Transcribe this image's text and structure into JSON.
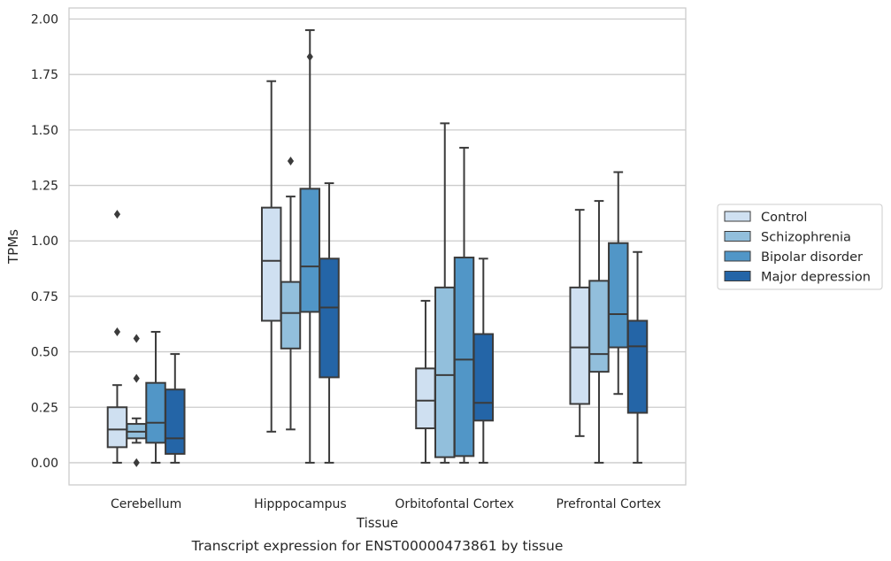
{
  "chart_data": {
    "type": "box",
    "title": "",
    "caption": "Transcript expression for ENST00000473861 by tissue",
    "xlabel": "Tissue",
    "ylabel": "TPMs",
    "ylim": [
      -0.1,
      2.05
    ],
    "yticks": [
      0.0,
      0.25,
      0.5,
      0.75,
      1.0,
      1.25,
      1.5,
      1.75,
      2.0
    ],
    "ytick_labels": [
      "0.00",
      "0.25",
      "0.50",
      "0.75",
      "1.00",
      "1.25",
      "1.50",
      "1.75",
      "2.00"
    ],
    "grid": "horizontal",
    "legend_position": "right",
    "categories": [
      "Cerebellum",
      "Hipppocampus",
      "Orbitofontal Cortex",
      "Prefrontal Cortex"
    ],
    "series": [
      {
        "name": "Control",
        "color": "#cfe0f1",
        "boxes": [
          {
            "whislo": 0.0,
            "q1": 0.07,
            "med": 0.15,
            "q3": 0.25,
            "whishi": 0.35,
            "fliers": [
              0.59,
              1.12
            ]
          },
          {
            "whislo": 0.14,
            "q1": 0.64,
            "med": 0.91,
            "q3": 1.15,
            "whishi": 1.72,
            "fliers": []
          },
          {
            "whislo": 0.0,
            "q1": 0.155,
            "med": 0.28,
            "q3": 0.425,
            "whishi": 0.73,
            "fliers": []
          },
          {
            "whislo": 0.12,
            "q1": 0.265,
            "med": 0.52,
            "q3": 0.79,
            "whishi": 1.14,
            "fliers": []
          }
        ]
      },
      {
        "name": "Schizophrenia",
        "color": "#92bfdc",
        "boxes": [
          {
            "whislo": 0.09,
            "q1": 0.11,
            "med": 0.14,
            "q3": 0.175,
            "whishi": 0.2,
            "fliers": [
              0.0,
              0.38,
              0.56
            ]
          },
          {
            "whislo": 0.15,
            "q1": 0.515,
            "med": 0.675,
            "q3": 0.815,
            "whishi": 1.2,
            "fliers": [
              1.36
            ]
          },
          {
            "whislo": 0.0,
            "q1": 0.025,
            "med": 0.395,
            "q3": 0.79,
            "whishi": 1.53,
            "fliers": []
          },
          {
            "whislo": 0.0,
            "q1": 0.41,
            "med": 0.49,
            "q3": 0.82,
            "whishi": 1.18,
            "fliers": []
          }
        ]
      },
      {
        "name": "Bipolar disorder",
        "color": "#5196c7",
        "boxes": [
          {
            "whislo": 0.0,
            "q1": 0.09,
            "med": 0.18,
            "q3": 0.36,
            "whishi": 0.59,
            "fliers": []
          },
          {
            "whislo": 0.0,
            "q1": 0.68,
            "med": 0.885,
            "q3": 1.235,
            "whishi": 1.95,
            "fliers": [
              1.83
            ]
          },
          {
            "whislo": 0.0,
            "q1": 0.03,
            "med": 0.465,
            "q3": 0.925,
            "whishi": 1.42,
            "fliers": []
          },
          {
            "whislo": 0.31,
            "q1": 0.52,
            "med": 0.67,
            "q3": 0.99,
            "whishi": 1.31,
            "fliers": []
          }
        ]
      },
      {
        "name": "Major depression",
        "color": "#2465a7",
        "boxes": [
          {
            "whislo": 0.0,
            "q1": 0.04,
            "med": 0.11,
            "q3": 0.33,
            "whishi": 0.49,
            "fliers": []
          },
          {
            "whislo": 0.0,
            "q1": 0.385,
            "med": 0.7,
            "q3": 0.92,
            "whishi": 1.26,
            "fliers": []
          },
          {
            "whislo": 0.0,
            "q1": 0.19,
            "med": 0.27,
            "q3": 0.58,
            "whishi": 0.92,
            "fliers": []
          },
          {
            "whislo": 0.0,
            "q1": 0.225,
            "med": 0.525,
            "q3": 0.64,
            "whishi": 0.95,
            "fliers": []
          }
        ]
      }
    ]
  }
}
